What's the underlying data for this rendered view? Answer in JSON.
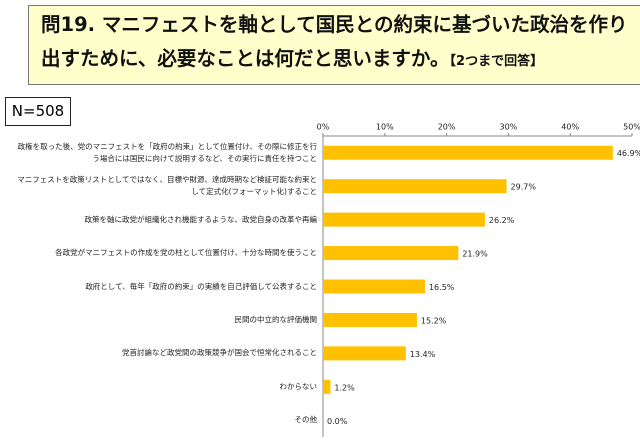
{
  "header": {
    "question": "問19. マニフェストを軸として国民との約束に基づいた政治を作り出すために、必要なことは何だと思いますか。",
    "note": "【2つまで回答】"
  },
  "sample": "N=508",
  "chart_data": {
    "type": "barh",
    "categories": [
      "政権を取った後、党のマニフェストを「政府の約束」として位置付け、その際に修正を行う場合には国民に向けて説明するなど、その実行に責任を持つこと",
      "マニフェストを政策リストとしてではなく、目標や財源、達成時期など検証可能な約束として定式化(フォーマット化)すること",
      "政策を軸に政党が組織化され機能するような、政党自身の改革や再編",
      "各政党がマニフェストの作成を党の柱として位置付け、十分な時間を使うこと",
      "政府として、毎年「政府の約束」の実績を自己評価して公表すること",
      "民間の中立的な評価機関",
      "党首討論など政党間の政策競争が国会で恒常化されること",
      "わからない",
      "その他"
    ],
    "values": [
      46.9,
      29.7,
      26.2,
      21.9,
      16.5,
      15.2,
      13.4,
      1.2,
      0.0
    ],
    "value_labels": [
      "46.9%",
      "29.7%",
      "26.2%",
      "21.9%",
      "16.5%",
      "15.2%",
      "13.4%",
      "1.2%",
      "0.0%"
    ],
    "color": "#ffc000",
    "xlim": [
      0,
      50
    ],
    "xticks": [
      {
        "value": 0,
        "label": "0%"
      },
      {
        "value": 10,
        "label": "10%"
      },
      {
        "value": 20,
        "label": "20%"
      },
      {
        "value": 30,
        "label": "30%"
      },
      {
        "value": 40,
        "label": "40%"
      },
      {
        "value": 50,
        "label": "50%"
      }
    ]
  }
}
